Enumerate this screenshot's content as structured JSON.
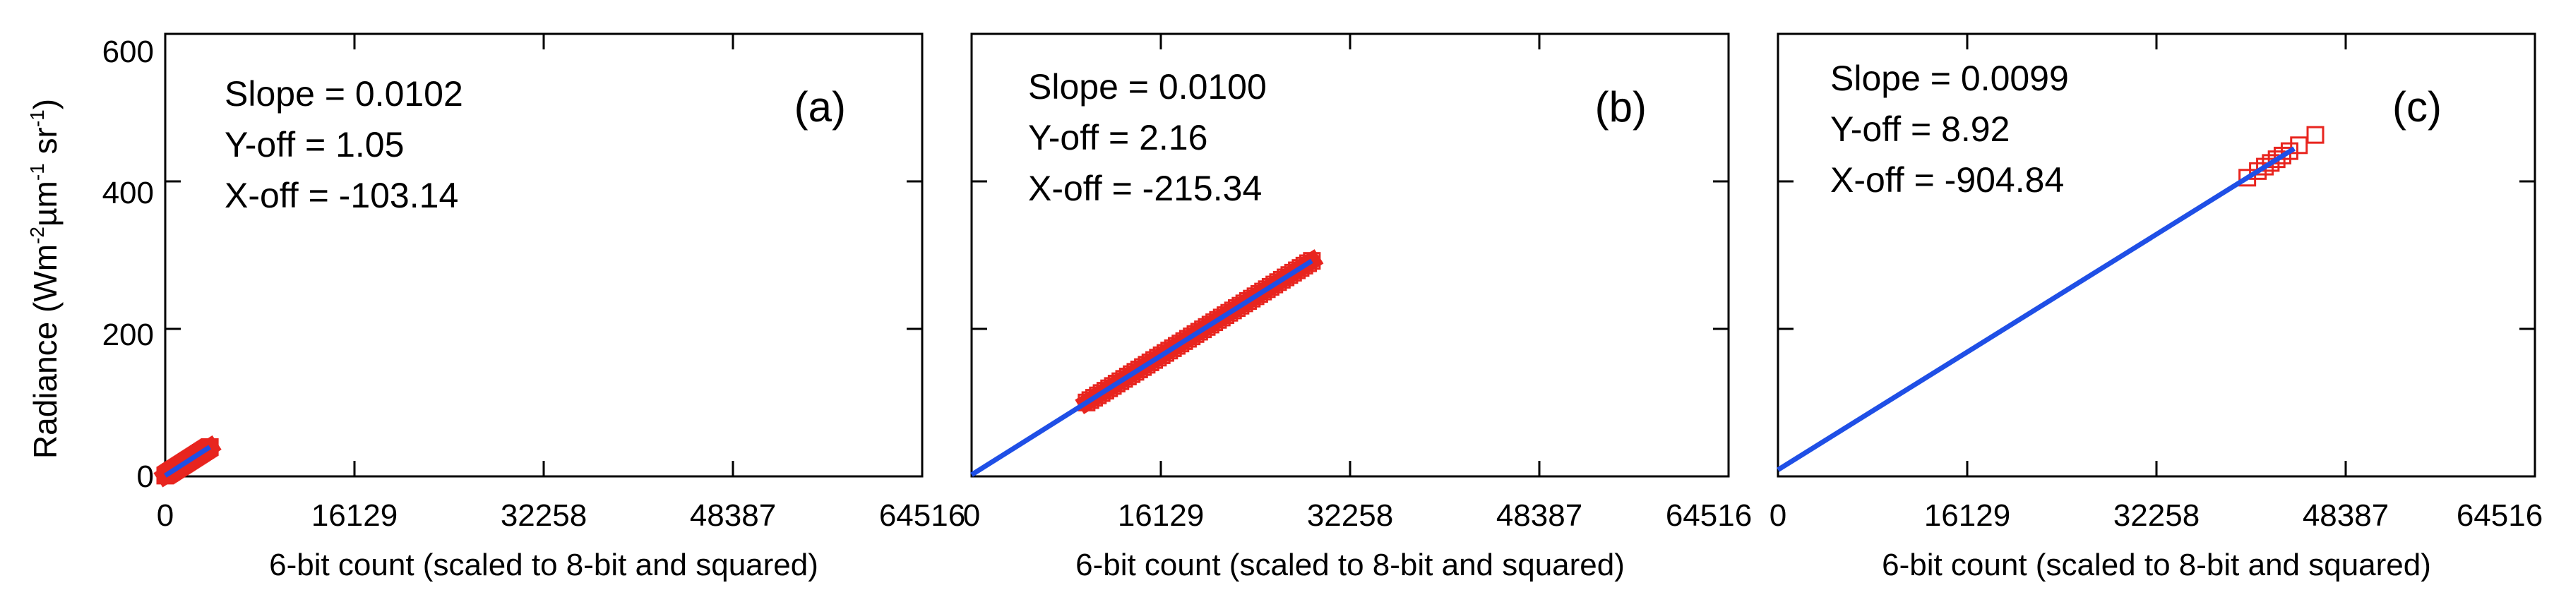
{
  "figure": {
    "ylabel": "Radiance (Wm⁻²µm⁻¹sr⁻¹)",
    "ylabel_base": "Radiance (Wm",
    "ylabel_sup1": "-2",
    "ylabel_mid1": "µm",
    "ylabel_sup2": "-1",
    "ylabel_mid2": " sr",
    "ylabel_sup3": "-1",
    "ylabel_end": ")"
  },
  "colors": {
    "points": "#e8251f",
    "fit_line": "#1f4fe6",
    "axes": "#000000"
  },
  "chart_data": [
    {
      "type": "scatter",
      "panel": "(a)",
      "xlabel": "6-bit count (scaled to 8-bit and squared)",
      "xlim": [
        0,
        64516
      ],
      "ylim": [
        0,
        600
      ],
      "xticks": [
        "0",
        "16129",
        "32258",
        "48387",
        "64516"
      ],
      "yticks": [
        "0",
        "200",
        "400",
        "600"
      ],
      "annotation": [
        "Slope = 0.0102",
        "Y-off = 1.05",
        "X-off = -103.14"
      ],
      "fit": {
        "slope": 0.0102,
        "intercept": 1.05,
        "x_range": [
          0,
          3800
        ]
      },
      "points_range": {
        "x": [
          0,
          3800
        ],
        "y": [
          1.05,
          39.8
        ]
      }
    },
    {
      "type": "scatter",
      "panel": "(b)",
      "xlabel": "6-bit count (scaled to 8-bit and squared)",
      "xlim": [
        0,
        64516
      ],
      "ylim": [
        0,
        600
      ],
      "xticks": [
        "0",
        "16129",
        "32258",
        "48387",
        "64516"
      ],
      "yticks": [],
      "annotation": [
        "Slope = 0.0100",
        "Y-off = 2.16",
        "X-off = -215.34"
      ],
      "fit": {
        "slope": 0.01,
        "intercept": 2.16,
        "x_range": [
          0,
          29000
        ]
      },
      "points_range": {
        "x": [
          9800,
          29000
        ],
        "y": [
          100.2,
          292.2
        ]
      }
    },
    {
      "type": "scatter",
      "panel": "(c)",
      "xlabel": "6-bit count (scaled to 8-bit and squared)",
      "xlim": [
        0,
        64516
      ],
      "ylim": [
        0,
        600
      ],
      "xticks": [
        "0",
        "16129",
        "32258",
        "48387",
        "64516"
      ],
      "yticks": [],
      "annotation": [
        "Slope = 0.0099",
        "Y-off = 8.92",
        "X-off = -904.84"
      ],
      "fit": {
        "slope": 0.0099,
        "intercept": 8.92,
        "x_range": [
          0,
          44000
        ]
      },
      "points": [
        [
          40000,
          405
        ],
        [
          40900,
          414
        ],
        [
          41500,
          420
        ],
        [
          42000,
          425
        ],
        [
          42500,
          430
        ],
        [
          43000,
          435
        ],
        [
          43600,
          441
        ],
        [
          44400,
          449
        ],
        [
          45800,
          463
        ]
      ]
    }
  ]
}
